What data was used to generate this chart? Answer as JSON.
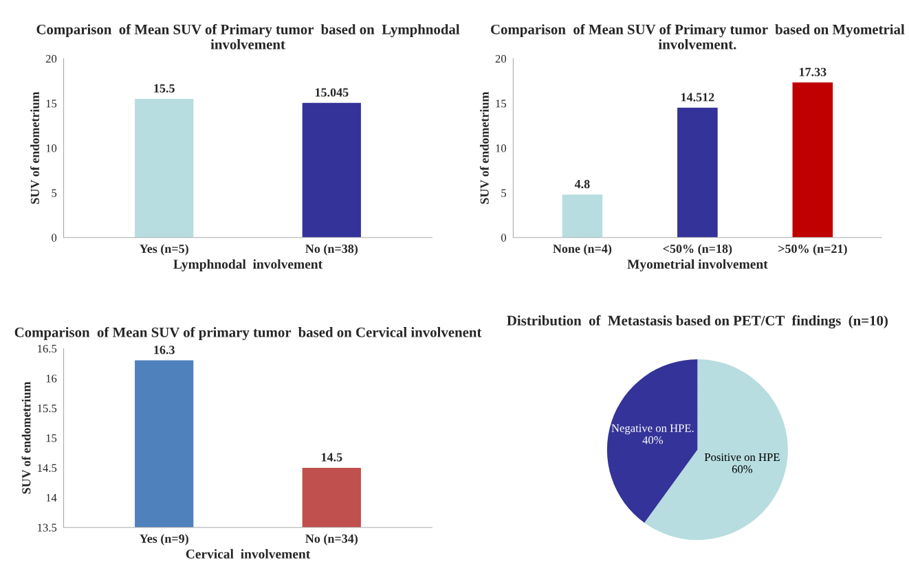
{
  "chart_data": [
    {
      "type": "bar",
      "title": "Comparison  of Mean SUV of Primary tumor  based on  Lymphnodal involvement",
      "xlabel": "Lymphnodal  involvement",
      "ylabel": "SUV of endometrium",
      "categories": [
        "Yes (n=5)",
        "No (n=38)"
      ],
      "values": [
        15.5,
        15.045
      ],
      "colors": [
        "#b7dde0",
        "#343399"
      ],
      "ylim": [
        0,
        20
      ],
      "yticks": [
        0,
        5,
        10,
        15,
        20
      ],
      "data_labels": true,
      "grid": false,
      "legend": false
    },
    {
      "type": "bar",
      "title": "Comparison  of Mean SUV of Primary tumor  based on Myometrial involvement.",
      "xlabel": "Myometrial involvement",
      "ylabel": "SUV of endometrium",
      "categories": [
        "None (n=4)",
        "<50% (n=18)",
        ">50% (n=21)"
      ],
      "values": [
        4.8,
        14.512,
        17.33
      ],
      "colors": [
        "#b7dde0",
        "#343399",
        "#c00000"
      ],
      "ylim": [
        0,
        20
      ],
      "yticks": [
        0,
        5,
        10,
        15,
        20
      ],
      "data_labels": true,
      "grid": false,
      "legend": false
    },
    {
      "type": "bar",
      "title": "Comparison  of Mean SUV of primary tumor  based on Cervical involvenent",
      "xlabel": "Cervical  involvement",
      "ylabel": "SUV of endometrium",
      "categories": [
        "Yes (n=9)",
        "No (n=34)"
      ],
      "values": [
        16.3,
        14.5
      ],
      "colors": [
        "#4f81bd",
        "#c0504d"
      ],
      "ylim": [
        13.5,
        16.5
      ],
      "yticks": [
        13.5,
        14,
        14.5,
        15,
        15.5,
        16,
        16.5
      ],
      "data_labels": true,
      "grid": false,
      "legend": false
    },
    {
      "type": "pie",
      "title": "Distribution  of  Metastasis based on PET/CT  findings  (n=10)",
      "categories": [
        "Positive on HPE",
        "Negative on HPE."
      ],
      "values": [
        60,
        40
      ],
      "value_labels": [
        "60%",
        "40%"
      ],
      "colors": [
        "#b7dde0",
        "#343399"
      ],
      "legend": false
    }
  ]
}
